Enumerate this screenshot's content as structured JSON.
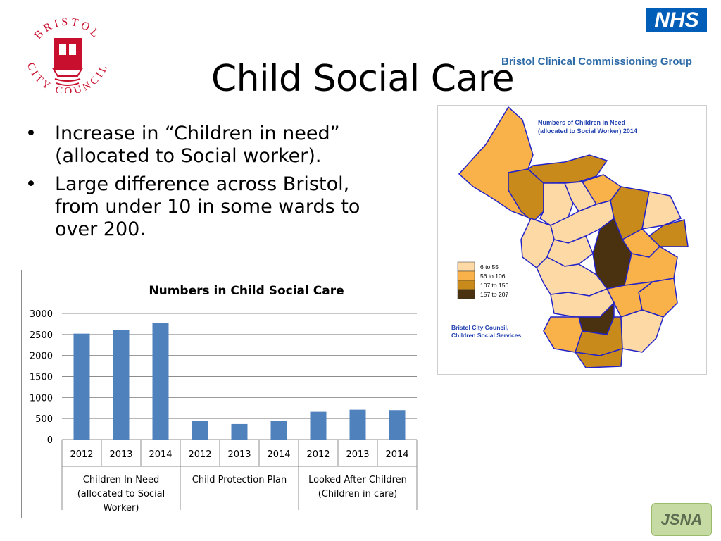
{
  "slide": {
    "title": "Child Social Care",
    "bullets": [
      "Increase in “Children in need” (allocated to Social worker).",
      "Large difference across Bristol, from under 10 in some wards to over 200."
    ]
  },
  "logos": {
    "council_arc": "BRISTOL CITY COUNCIL",
    "nhs": "NHS",
    "ccg": "Bristol Clinical Commissioning Group",
    "jsna": "JSNA"
  },
  "map": {
    "title_line1": "Numbers of Children in Need",
    "title_line2": "(allocated to Social Worker) 2014",
    "legend": [
      {
        "label": "6 to 55",
        "color": "#fcd9a5"
      },
      {
        "label": "56 to 106",
        "color": "#f9b24a"
      },
      {
        "label": "107 to 156",
        "color": "#c98a1c"
      },
      {
        "label": "157 to 207",
        "color": "#4a3210"
      }
    ],
    "source_line1": "Bristol City Council,",
    "source_line2": "Children Social Services",
    "border_color": "#2222c8",
    "text_color": "#1f3fae"
  },
  "chart_data": {
    "type": "bar",
    "title": "Numbers in Child Social Care",
    "xlabel": "",
    "ylabel": "",
    "ylim": [
      0,
      3000
    ],
    "yticks": [
      0,
      500,
      1000,
      1500,
      2000,
      2500,
      3000
    ],
    "grid": true,
    "bar_color": "#4f81bd",
    "groups": [
      {
        "name": "Children In Need (allocated to Social Worker)",
        "lines": [
          "Children In Need",
          "(allocated to Social",
          "Worker)"
        ],
        "categories": [
          "2012",
          "2013",
          "2014"
        ],
        "values": [
          2520,
          2610,
          2780
        ]
      },
      {
        "name": "Child Protection Plan",
        "lines": [
          "Child Protection Plan"
        ],
        "categories": [
          "2012",
          "2013",
          "2014"
        ],
        "values": [
          440,
          370,
          440
        ]
      },
      {
        "name": "Looked After Children (Children in care)",
        "lines": [
          "Looked After Children",
          "(Children in care)"
        ],
        "categories": [
          "2012",
          "2013",
          "2014"
        ],
        "values": [
          660,
          710,
          700
        ]
      }
    ]
  }
}
